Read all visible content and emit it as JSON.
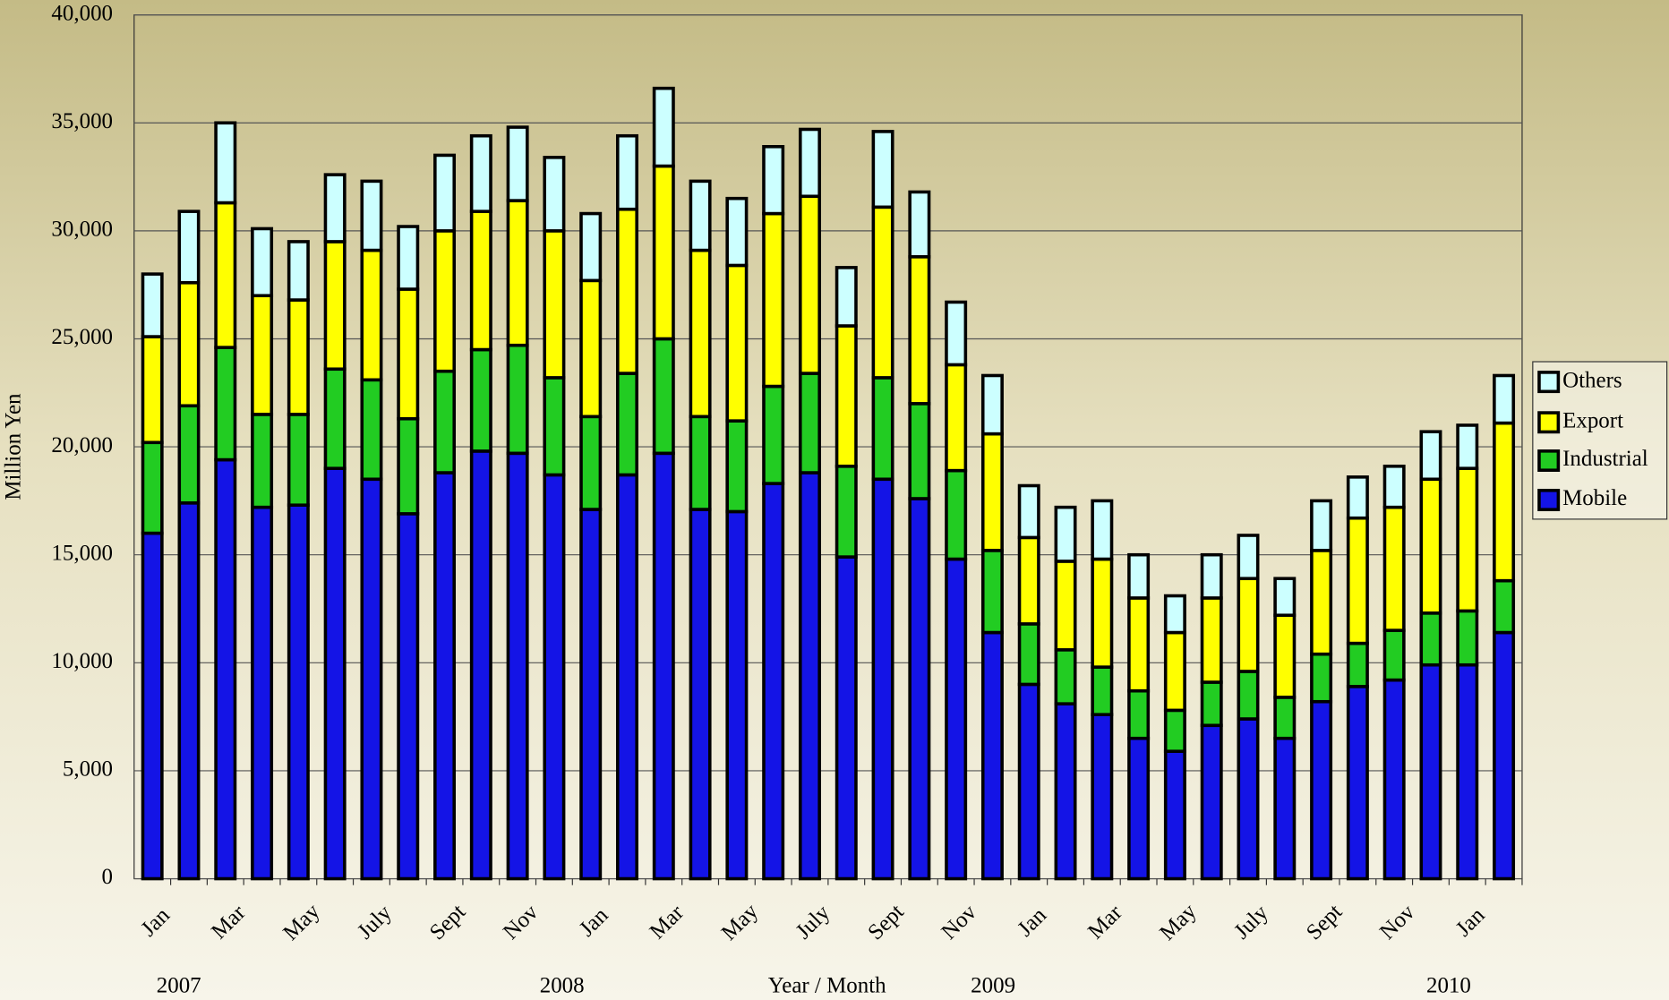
{
  "chart_data": {
    "type": "stacked_bar",
    "y_label": "Million Yen",
    "x_label": "Year / Month",
    "annotations": [
      "2007",
      "2008",
      "2009",
      "2010"
    ],
    "categories": [
      "Jan",
      null,
      "Mar",
      null,
      "May",
      null,
      "July",
      null,
      "Sept",
      null,
      "Nov",
      null,
      "Jan",
      null,
      "Mar",
      null,
      "May",
      null,
      "July",
      null,
      "Sept",
      null,
      "Nov",
      null,
      "Jan",
      null,
      "Mar",
      null,
      "May",
      null,
      "July",
      null,
      "Sept",
      null,
      "Nov",
      null,
      "Jan",
      null
    ],
    "series": [
      {
        "name": "Mobile",
        "color": "#1414e6",
        "values": [
          16000,
          17400,
          19400,
          17200,
          17300,
          19000,
          18500,
          16900,
          18800,
          19800,
          19700,
          18700,
          17100,
          18700,
          19700,
          17100,
          17000,
          18300,
          18800,
          14900,
          18500,
          17600,
          14800,
          11400,
          9000,
          8100,
          7600,
          6500,
          5900,
          7100,
          7400,
          6500,
          8200,
          8900,
          9200,
          9900,
          9900,
          11400
        ]
      },
      {
        "name": "Industrial",
        "color": "#22cc22",
        "values": [
          4200,
          4500,
          5200,
          4300,
          4200,
          4600,
          4600,
          4400,
          4700,
          4700,
          5000,
          4500,
          4300,
          4700,
          5300,
          4300,
          4200,
          4500,
          4600,
          4200,
          4700,
          4400,
          4100,
          3800,
          2800,
          2500,
          2200,
          2200,
          1900,
          2000,
          2200,
          1900,
          2200,
          2000,
          2300,
          2400,
          2500,
          2400
        ]
      },
      {
        "name": "Export",
        "color": "#ffff00",
        "values": [
          4900,
          5700,
          6700,
          5500,
          5300,
          5900,
          6000,
          6000,
          6500,
          6400,
          6700,
          6800,
          6300,
          7600,
          8000,
          7700,
          7200,
          8000,
          8200,
          6500,
          7900,
          6800,
          4900,
          5400,
          4000,
          4100,
          5000,
          4300,
          3600,
          3900,
          4300,
          3800,
          4800,
          5800,
          5700,
          6200,
          6600,
          7300
        ]
      },
      {
        "name": "Others",
        "color": "#ccffff",
        "values": [
          2900,
          3300,
          3700,
          3100,
          2700,
          3100,
          3200,
          2900,
          3500,
          3500,
          3400,
          3400,
          3100,
          3400,
          3600,
          3200,
          3100,
          3100,
          3100,
          2700,
          3500,
          3000,
          2900,
          2700,
          2400,
          2500,
          2700,
          2000,
          1700,
          2000,
          2000,
          1700,
          2300,
          1900,
          1900,
          2200,
          2000,
          2200
        ]
      }
    ],
    "ylim": [
      0,
      40000
    ],
    "yticks": [
      0,
      {
        "value": 5000,
        "label": "5,000"
      },
      {
        "value": 10000,
        "label": "10,000"
      },
      {
        "value": 15000,
        "label": "15,000"
      },
      {
        "value": 20000,
        "label": "20,000"
      },
      {
        "value": 25000,
        "label": "25,000"
      },
      {
        "value": 30000,
        "label": "30,000"
      },
      {
        "value": 35000,
        "label": "35,000"
      },
      {
        "value": 40000,
        "label": "40,000"
      }
    ],
    "grid": true,
    "legend": "right"
  }
}
